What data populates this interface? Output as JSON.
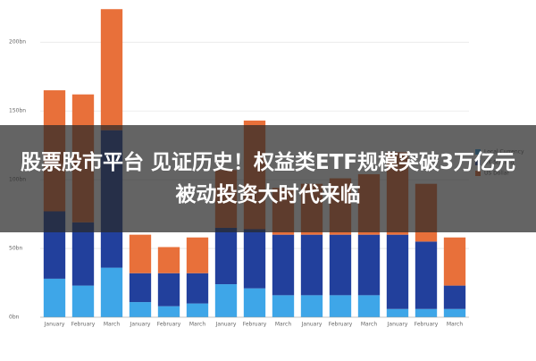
{
  "chart_data": {
    "type": "stacked_bar",
    "categories": [
      "January",
      "February",
      "March",
      "January",
      "February",
      "March",
      "January",
      "February",
      "March",
      "January",
      "February",
      "March",
      "January",
      "February",
      "March"
    ],
    "series": [
      {
        "name": "Local Currency",
        "color": "#3ea6e8",
        "values": [
          28,
          23,
          36,
          11,
          8,
          10,
          24,
          21,
          16,
          16,
          16,
          16,
          6,
          6,
          6
        ]
      },
      {
        "name": "UK Sterling",
        "color": "#22409c",
        "values": [
          49,
          46,
          100,
          21,
          24,
          22,
          41,
          43,
          44,
          44,
          44,
          44,
          54,
          49,
          17
        ]
      },
      {
        "name": "US Dollar",
        "color": "#e8703a",
        "values": [
          88,
          93,
          88,
          28,
          19,
          26,
          42,
          79,
          34,
          37,
          41,
          44,
          60,
          42,
          35
        ]
      }
    ],
    "ylim": [
      0,
      230
    ],
    "yticks": [
      {
        "value": 0,
        "label": "0bn"
      },
      {
        "value": 50,
        "label": "50bn"
      },
      {
        "value": 100,
        "label": "100bn"
      },
      {
        "value": 150,
        "label": "150bn"
      },
      {
        "value": 200,
        "label": "200bn"
      }
    ],
    "grid": true
  },
  "banner": {
    "title": "股票股市平台 见证历史！权益类ETF规模突破3万亿元 被动投资大时代来临"
  }
}
